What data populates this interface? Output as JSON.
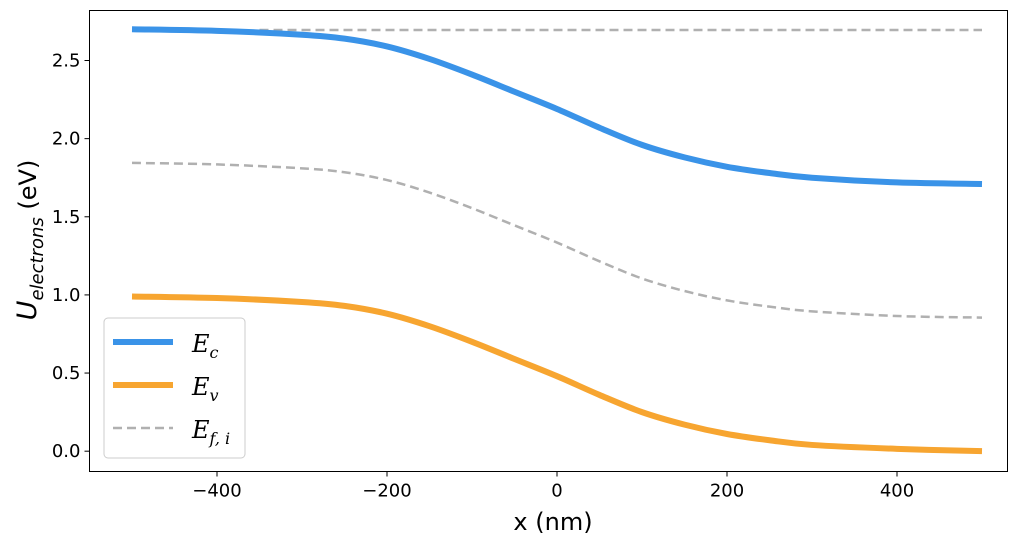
{
  "chart_data": {
    "type": "line",
    "xlabel": "x (nm)",
    "ylabel_main": "U",
    "ylabel_sub": "electrons",
    "ylabel_unit": " (eV)",
    "xlim": [
      -550,
      530
    ],
    "ylim": [
      -0.13,
      2.82
    ],
    "x_ticks": [
      -400,
      -200,
      0,
      200,
      400
    ],
    "x_tick_labels": [
      "−400",
      "−200",
      "0",
      "200",
      "400"
    ],
    "y_ticks": [
      0.0,
      0.5,
      1.0,
      1.5,
      2.0,
      2.5
    ],
    "y_tick_labels": [
      "0.0",
      "0.5",
      "1.0",
      "1.5",
      "2.0",
      "2.5"
    ],
    "grid": false,
    "legend_position": "lower-left",
    "x": [
      -500,
      -400,
      -300,
      -250,
      -200,
      -150,
      -100,
      -50,
      0,
      50,
      100,
      150,
      200,
      250,
      300,
      400,
      500
    ],
    "series": [
      {
        "key": "Ec",
        "legend_main": "E",
        "legend_sub": "c",
        "color": "#3a93e8",
        "style": "solid",
        "values": [
          2.7,
          2.69,
          2.665,
          2.64,
          2.59,
          2.51,
          2.41,
          2.3,
          2.19,
          2.07,
          1.96,
          1.88,
          1.82,
          1.78,
          1.75,
          1.72,
          1.71
        ]
      },
      {
        "key": "Ev",
        "legend_main": "E",
        "legend_sub": "v",
        "color": "#f7a530",
        "style": "solid",
        "values": [
          0.99,
          0.98,
          0.955,
          0.93,
          0.88,
          0.8,
          0.7,
          0.59,
          0.48,
          0.36,
          0.25,
          0.17,
          0.11,
          0.07,
          0.04,
          0.015,
          0.0
        ]
      },
      {
        "key": "Efi",
        "legend_main": "E",
        "legend_sub": "f, i",
        "color": "#b0b0b0",
        "style": "dashed",
        "values": [
          1.845,
          1.835,
          1.81,
          1.785,
          1.735,
          1.655,
          1.555,
          1.445,
          1.335,
          1.215,
          1.105,
          1.025,
          0.965,
          0.925,
          0.895,
          0.865,
          0.855
        ]
      },
      {
        "key": "Ec_ref",
        "color": "#b0b0b0",
        "style": "dashed",
        "legend": false,
        "x": [
          -350,
          500
        ],
        "values": [
          2.695,
          2.695
        ]
      }
    ]
  }
}
